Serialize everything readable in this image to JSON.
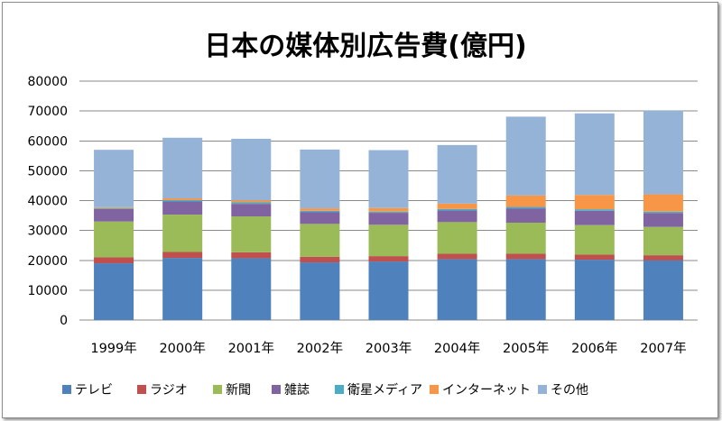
{
  "chart_data": {
    "type": "bar",
    "stacked": true,
    "title": "日本の媒体別広告費(億円)",
    "categories": [
      "1999年",
      "2000年",
      "2001年",
      "2002年",
      "2003年",
      "2004年",
      "2005年",
      "2006年",
      "2007年"
    ],
    "yticks": [
      "0",
      "10000",
      "20000",
      "30000",
      "40000",
      "50000",
      "60000",
      "70000",
      "80000"
    ],
    "ylim": [
      0,
      80000
    ],
    "grid": true,
    "legend_position": "bottom",
    "series": [
      {
        "name": "テレビ",
        "color": "#4f81bd",
        "values": [
          19000,
          20800,
          20700,
          19300,
          19600,
          20400,
          20400,
          20200,
          20000
        ]
      },
      {
        "name": "ラジオ",
        "color": "#c0504d",
        "values": [
          2000,
          2000,
          2000,
          1900,
          1800,
          1800,
          1800,
          1700,
          1700
        ]
      },
      {
        "name": "新聞",
        "color": "#9bbb59",
        "values": [
          12000,
          12500,
          12000,
          11000,
          10500,
          10600,
          10400,
          9900,
          9500
        ]
      },
      {
        "name": "雑誌",
        "color": "#8064a2",
        "values": [
          4200,
          4400,
          4200,
          4000,
          4000,
          3900,
          4800,
          4800,
          4600
        ]
      },
      {
        "name": "衛星メディア",
        "color": "#4bacc6",
        "values": [
          300,
          450,
          500,
          400,
          400,
          500,
          500,
          500,
          500
        ]
      },
      {
        "name": "インターネット",
        "color": "#f79646",
        "values": [
          300,
          600,
          700,
          800,
          1200,
          1800,
          3800,
          4800,
          5800
        ]
      },
      {
        "name": "その他",
        "color": "#95b3d7",
        "values": [
          19200,
          20300,
          20600,
          19700,
          19400,
          19600,
          26400,
          27300,
          28000
        ]
      }
    ]
  }
}
